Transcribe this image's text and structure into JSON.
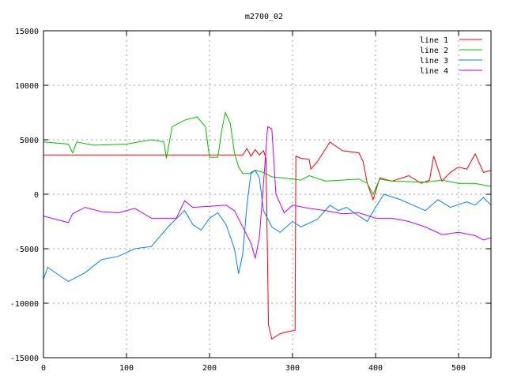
{
  "chart_data": {
    "type": "line",
    "title": "m2700_02",
    "xlabel": "",
    "ylabel": "",
    "xlim": [
      0,
      539
    ],
    "ylim": [
      -15000,
      15000
    ],
    "xticks": [
      0,
      100,
      200,
      300,
      400,
      500
    ],
    "yticks": [
      -15000,
      -10000,
      -5000,
      0,
      5000,
      10000,
      15000
    ],
    "grid": true,
    "legend_position": "top-right",
    "series": [
      {
        "name": "line 1",
        "color": "#ff0000",
        "x": [
          0,
          100,
          200,
          240,
          245,
          250,
          255,
          260,
          265,
          268,
          271,
          275,
          285,
          295,
          303,
          304,
          310,
          320,
          322,
          330,
          345,
          360,
          380,
          385,
          390,
          397,
          405,
          420,
          440,
          455,
          465,
          470,
          480,
          490,
          500,
          510,
          520,
          530,
          539
        ],
        "y": [
          3600,
          3600,
          3600,
          3600,
          4200,
          3500,
          4100,
          3600,
          4000,
          3300,
          -12000,
          -13300,
          -12800,
          -12600,
          -12500,
          3500,
          3300,
          3200,
          2300,
          3000,
          4800,
          4000,
          3800,
          3000,
          1000,
          -500,
          1500,
          1200,
          1700,
          1000,
          1300,
          3500,
          1200,
          2000,
          2500,
          2300,
          3700,
          2000,
          2200
        ]
      },
      {
        "name": "line 2",
        "color": "#00c000",
        "x": [
          0,
          30,
          35,
          40,
          60,
          100,
          130,
          145,
          148,
          155,
          170,
          185,
          195,
          200,
          210,
          215,
          219,
          225,
          230,
          235,
          240,
          250,
          255,
          265,
          275,
          300,
          310,
          320,
          340,
          380,
          390,
          397,
          405,
          420,
          460,
          480,
          500,
          520,
          539
        ],
        "y": [
          4800,
          4600,
          3800,
          4800,
          4500,
          4600,
          5000,
          4800,
          3300,
          6200,
          6800,
          7100,
          6200,
          3400,
          3400,
          6000,
          7500,
          6500,
          3800,
          2500,
          1900,
          1900,
          2200,
          2000,
          1600,
          1400,
          1300,
          1700,
          1200,
          1400,
          1000,
          0,
          1400,
          1200,
          1100,
          1300,
          1000,
          1000,
          700
        ]
      },
      {
        "name": "line 3",
        "color": "#0080ff",
        "x": [
          0,
          5,
          20,
          30,
          50,
          70,
          90,
          110,
          130,
          150,
          170,
          180,
          190,
          200,
          210,
          220,
          230,
          235,
          240,
          245,
          250,
          255,
          260,
          265,
          275,
          285,
          300,
          310,
          330,
          345,
          355,
          365,
          380,
          390,
          400,
          410,
          430,
          445,
          460,
          475,
          490,
          510,
          520,
          530,
          539
        ],
        "y": [
          -7800,
          -6700,
          -7500,
          -8000,
          -7200,
          -6000,
          -5700,
          -5000,
          -4800,
          -3000,
          -1500,
          -2800,
          -3300,
          -2200,
          -1700,
          -2800,
          -5000,
          -7300,
          -5500,
          -1000,
          2000,
          2200,
          1500,
          -1500,
          -3000,
          -3500,
          -2500,
          -3000,
          -2300,
          -1000,
          -1500,
          -1200,
          -2000,
          -2500,
          -1200,
          0,
          -500,
          -1000,
          -1500,
          -500,
          -1200,
          -700,
          -1000,
          -300,
          -1000
        ]
      },
      {
        "name": "line 4",
        "color": "#c000ff",
        "x": [
          0,
          20,
          30,
          35,
          50,
          70,
          90,
          110,
          130,
          160,
          170,
          180,
          200,
          220,
          230,
          240,
          250,
          255,
          260,
          265,
          270,
          275,
          280,
          290,
          300,
          320,
          340,
          360,
          380,
          400,
          420,
          440,
          460,
          480,
          500,
          520,
          530,
          539
        ],
        "y": [
          -2000,
          -2400,
          -2600,
          -1800,
          -1200,
          -1600,
          -1700,
          -1300,
          -2200,
          -2200,
          -600,
          -1200,
          -1100,
          -1000,
          -1500,
          -3000,
          -4500,
          -5900,
          -4000,
          1000,
          6200,
          6000,
          0,
          -1700,
          -1000,
          -1300,
          -1500,
          -1800,
          -1700,
          -2200,
          -2200,
          -2500,
          -3000,
          -3700,
          -3500,
          -3800,
          -4200,
          -4000
        ]
      }
    ]
  }
}
